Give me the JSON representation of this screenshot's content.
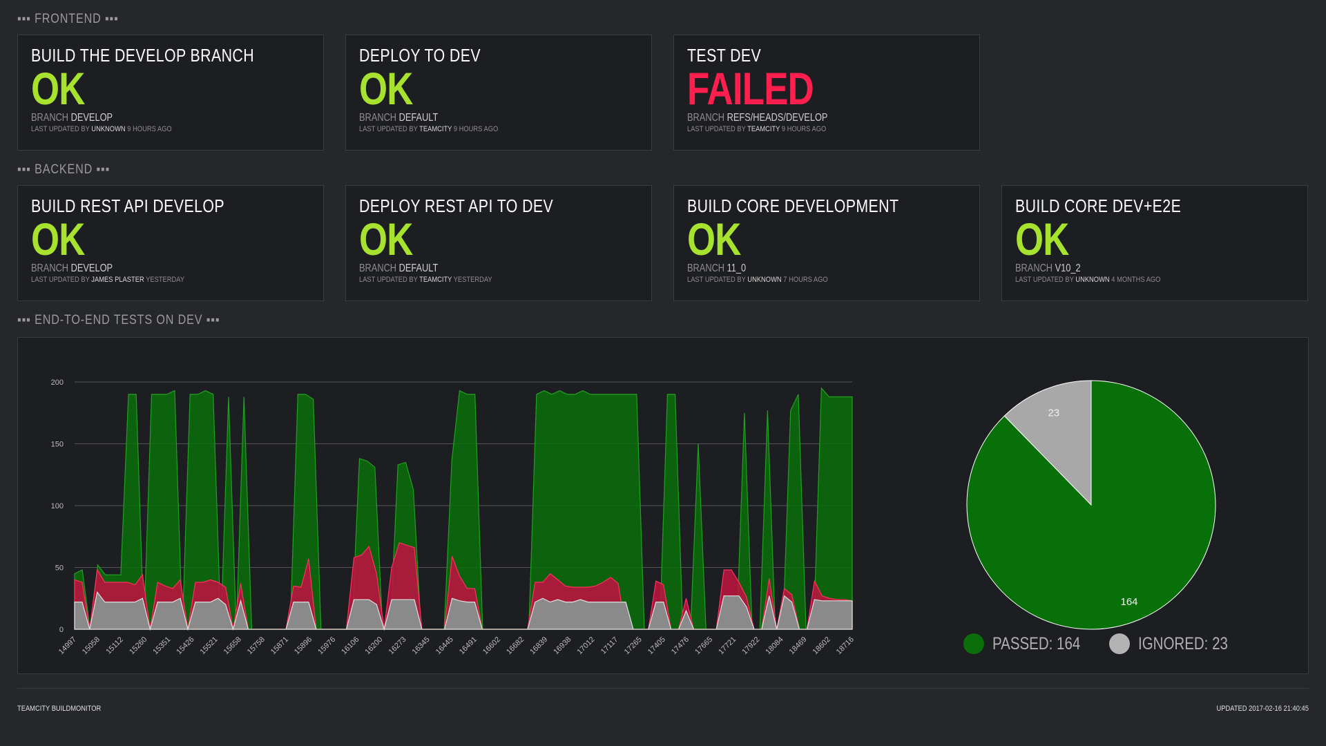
{
  "colors": {
    "ok": "#a6e22e",
    "failed": "#ff1f4f",
    "passed": "#0a6e0a",
    "failed_series": "#b8163e",
    "ignored": "#8a8a8a"
  },
  "sections": {
    "frontend": "FRONTEND",
    "backend": "BACKEND",
    "e2e": "END-TO-END TESTS ON DEV",
    "dots": "▪▪▪"
  },
  "branch_prefix": "BRANCH",
  "updated_prefix": "LAST UPDATED BY",
  "frontend": [
    {
      "title": "BUILD THE DEVELOP BRANCH",
      "status": "OK",
      "branch": "DEVELOP",
      "by": "UNKNOWN",
      "when": "9 HOURS AGO"
    },
    {
      "title": "DEPLOY TO DEV",
      "status": "OK",
      "branch": "DEFAULT",
      "by": "TEAMCITY",
      "when": "9 HOURS AGO"
    },
    {
      "title": "TEST DEV",
      "status": "FAILED",
      "branch": "REFS/HEADS/DEVELOP",
      "by": "TEAMCITY",
      "when": "9 HOURS AGO"
    }
  ],
  "backend": [
    {
      "title": "BUILD REST API DEVELOP",
      "status": "OK",
      "branch": "DEVELOP",
      "by": "JAMES PLASTER",
      "when": "YESTERDAY"
    },
    {
      "title": "DEPLOY REST API TO DEV",
      "status": "OK",
      "branch": "DEFAULT",
      "by": "TEAMCITY",
      "when": "YESTERDAY"
    },
    {
      "title": "BUILD CORE DEVELOPMENT",
      "status": "OK",
      "branch": "11_0",
      "by": "UNKNOWN",
      "when": "7 HOURS AGO"
    },
    {
      "title": "BUILD CORE DEV+E2E",
      "status": "OK",
      "branch": "V10_2",
      "by": "UNKNOWN",
      "when": "4 MONTHS AGO"
    }
  ],
  "chart_data": [
    {
      "type": "area",
      "ylim": [
        0,
        200
      ],
      "yticks": [
        0,
        50,
        100,
        150,
        200
      ],
      "grid": true,
      "x_tick_labels": [
        "14997",
        "15058",
        "15112",
        "15260",
        "15351",
        "15426",
        "15521",
        "15658",
        "15758",
        "15871",
        "15896",
        "15976",
        "16106",
        "16200",
        "16273",
        "16345",
        "16445",
        "16491",
        "16602",
        "16682",
        "16839",
        "16938",
        "17012",
        "17117",
        "17265",
        "17405",
        "17476",
        "17665",
        "17721",
        "17922",
        "18084",
        "18469",
        "18602",
        "18716"
      ],
      "series": [
        {
          "values": [
            45,
            48,
            0,
            52,
            44,
            44,
            44,
            190,
            190,
            0,
            190,
            190,
            190,
            193,
            0,
            190,
            190,
            193,
            190,
            0,
            188,
            0,
            188,
            0,
            0,
            0,
            0,
            0,
            0,
            190,
            190,
            186,
            0,
            0,
            0,
            0,
            0,
            138,
            136,
            131,
            0,
            0,
            133,
            135,
            113,
            0,
            0,
            0,
            0,
            137,
            193,
            190,
            190,
            0,
            0,
            0,
            0,
            0,
            0,
            0,
            190,
            193,
            190,
            193,
            190,
            190,
            193,
            190,
            190,
            190,
            190,
            190,
            190,
            190,
            0,
            0,
            0,
            190,
            190,
            0,
            0,
            150,
            0,
            0,
            0,
            0,
            0,
            175,
            0,
            0,
            177,
            0,
            0,
            177,
            190,
            0,
            0,
            195,
            188,
            188,
            188,
            188
          ]
        },
        {
          "values": [
            40,
            38,
            0,
            48,
            38,
            38,
            38,
            38,
            36,
            44,
            0,
            38,
            35,
            33,
            40,
            0,
            38,
            38,
            40,
            38,
            34,
            0,
            37,
            0,
            0,
            0,
            0,
            0,
            0,
            35,
            34,
            57,
            0,
            0,
            0,
            0,
            0,
            58,
            60,
            67,
            45,
            0,
            50,
            70,
            68,
            66,
            0,
            0,
            0,
            0,
            59,
            43,
            33,
            33,
            0,
            0,
            0,
            0,
            0,
            0,
            0,
            38,
            38,
            45,
            40,
            35,
            34,
            34,
            34,
            35,
            38,
            42,
            37,
            0,
            0,
            0,
            0,
            39,
            36,
            0,
            0,
            25,
            0,
            0,
            0,
            0,
            48,
            48,
            38,
            26,
            0,
            0,
            41,
            0,
            33,
            28,
            0,
            0,
            39,
            27,
            25,
            24,
            24,
            23
          ]
        },
        {
          "values": [
            22,
            22,
            0,
            30,
            22,
            22,
            22,
            22,
            22,
            25,
            0,
            22,
            22,
            22,
            25,
            0,
            22,
            22,
            22,
            25,
            20,
            0,
            23,
            0,
            0,
            0,
            0,
            0,
            0,
            22,
            22,
            22,
            0,
            0,
            0,
            0,
            0,
            24,
            24,
            24,
            20,
            0,
            24,
            24,
            24,
            24,
            0,
            0,
            0,
            0,
            25,
            23,
            22,
            22,
            0,
            0,
            0,
            0,
            0,
            0,
            0,
            22,
            25,
            22,
            24,
            22,
            22,
            24,
            22,
            22,
            22,
            22,
            22,
            22,
            0,
            0,
            0,
            22,
            22,
            0,
            0,
            15,
            0,
            0,
            0,
            0,
            27,
            27,
            27,
            18,
            0,
            0,
            27,
            0,
            27,
            22,
            0,
            0,
            24,
            23,
            23,
            23,
            23,
            23
          ]
        }
      ]
    },
    {
      "type": "pie",
      "slices": [
        {
          "name": "PASSED",
          "value": 164
        },
        {
          "name": "IGNORED",
          "value": 23
        }
      ]
    }
  ],
  "legend": [
    {
      "label": "PASSED: 164",
      "color": "#0a6e0a"
    },
    {
      "label": "IGNORED: 23",
      "color": "#b3b3b3"
    }
  ],
  "footer": {
    "left": "TEAMCITY BUILDMONITOR",
    "right": "UPDATED 2017-02-16 21:40:45"
  }
}
